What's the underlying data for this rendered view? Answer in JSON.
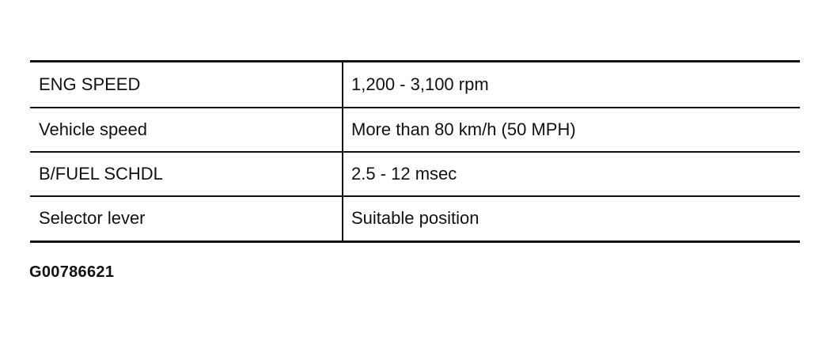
{
  "table": {
    "rows": [
      {
        "item": "ENG SPEED",
        "condition": "1,200 - 3,100 rpm"
      },
      {
        "item": "Vehicle speed",
        "condition": "More than 80 km/h (50 MPH)"
      },
      {
        "item": "B/FUEL SCHDL",
        "condition": "2.5 - 12 msec"
      },
      {
        "item": "Selector lever",
        "condition": "Suitable position"
      }
    ]
  },
  "figure_id": "G00786621"
}
